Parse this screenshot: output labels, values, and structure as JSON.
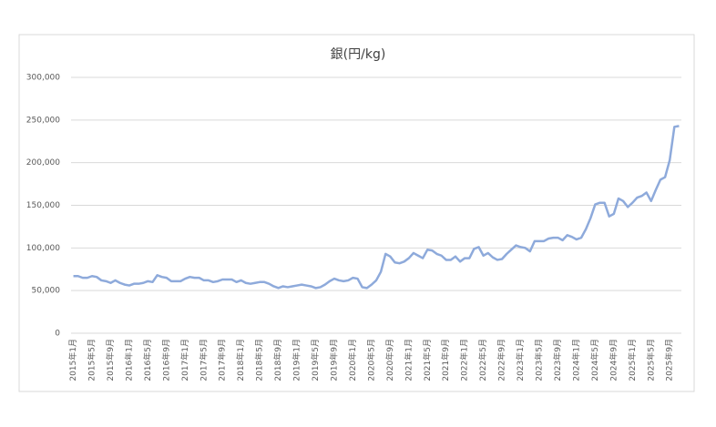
{
  "chart_data": {
    "type": "line",
    "title": "銀(円/kg)",
    "categories": [
      "2015年1月",
      null,
      null,
      null,
      "2015年5月",
      null,
      null,
      null,
      "2015年9月",
      null,
      null,
      null,
      "2016年1月",
      null,
      null,
      null,
      "2016年5月",
      null,
      null,
      null,
      "2016年9月",
      null,
      null,
      null,
      "2017年1月",
      null,
      null,
      null,
      "2017年5月",
      null,
      null,
      null,
      "2017年9月",
      null,
      null,
      null,
      "2018年1月",
      null,
      null,
      null,
      "2018年5月",
      null,
      null,
      null,
      "2018年9月",
      null,
      null,
      null,
      "2019年1月",
      null,
      null,
      null,
      "2019年5月",
      null,
      null,
      null,
      "2019年9月",
      null,
      null,
      null,
      "2020年1月",
      null,
      null,
      null,
      "2020年5月",
      null,
      null,
      null,
      "2020年9月",
      null,
      null,
      null,
      "2021年1月",
      null,
      null,
      null,
      "2021年5月",
      null,
      null,
      null,
      "2021年9月",
      null,
      null,
      null,
      "2022年1月",
      null,
      null,
      null,
      "2022年5月",
      null,
      null,
      null,
      "2022年9月",
      null,
      null,
      null,
      "2023年1月",
      null,
      null,
      null,
      "2023年5月",
      null,
      null,
      null,
      "2023年9月",
      null,
      null,
      null,
      "2024年1月",
      null,
      null,
      null,
      "2024年5月",
      null,
      null,
      null,
      "2024年9月",
      null,
      null,
      null,
      "2025年1月",
      null,
      null,
      null,
      "2025年5月",
      null,
      null,
      null,
      "2025年9月",
      null,
      null
    ],
    "values": [
      67000,
      67000,
      65000,
      65000,
      67000,
      66000,
      62000,
      61000,
      59000,
      62000,
      59000,
      57000,
      56000,
      58000,
      58000,
      59000,
      61000,
      60000,
      68000,
      66000,
      65000,
      61000,
      61000,
      61000,
      64000,
      66000,
      65000,
      65000,
      62000,
      62000,
      60000,
      61000,
      63000,
      63000,
      63000,
      60000,
      62000,
      59000,
      58000,
      59000,
      60000,
      60000,
      58000,
      55000,
      53000,
      55000,
      54000,
      55000,
      56000,
      57000,
      56000,
      55000,
      53000,
      54000,
      57000,
      61000,
      64000,
      62000,
      61000,
      62000,
      65000,
      64000,
      54000,
      53000,
      57000,
      62000,
      72000,
      93000,
      90000,
      83000,
      82000,
      84000,
      88000,
      94000,
      91000,
      88000,
      98000,
      97000,
      93000,
      91000,
      86000,
      86000,
      90000,
      84000,
      88000,
      88000,
      99000,
      101000,
      91000,
      94000,
      89000,
      86000,
      87000,
      93000,
      98000,
      103000,
      101000,
      100000,
      96000,
      108000,
      108000,
      108000,
      111000,
      112000,
      112000,
      109000,
      115000,
      113000,
      110000,
      112000,
      122000,
      135000,
      151000,
      153000,
      153000,
      137000,
      140000,
      158000,
      155000,
      148000,
      153000,
      159000,
      161000,
      165000,
      155000,
      168000,
      180000,
      183000,
      203000,
      242000,
      243000
    ],
    "color": "#8eaadb",
    "ylim": [
      0,
      300000
    ],
    "yticks": [
      0,
      {
        "value": 50000,
        "label": "50,000"
      },
      {
        "value": 100000,
        "label": "100,000"
      },
      {
        "value": 150000,
        "label": "150,000"
      },
      {
        "value": 200000,
        "label": "200,000"
      },
      {
        "value": 250000,
        "label": "250,000"
      },
      {
        "value": 300000,
        "label": "300,000"
      }
    ],
    "grid": true
  }
}
